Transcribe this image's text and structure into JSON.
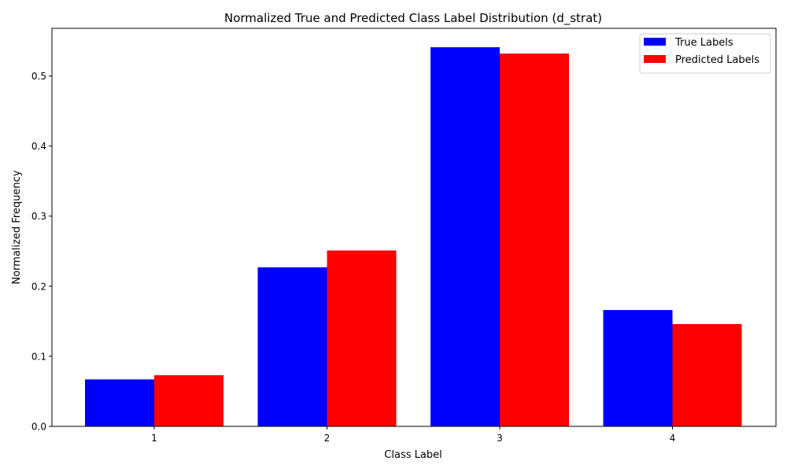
{
  "chart_data": {
    "type": "bar",
    "title": "Normalized True and Predicted Class Label Distribution (d_strat)",
    "xlabel": "Class Label",
    "ylabel": "Normalized Frequency",
    "categories": [
      "1",
      "2",
      "3",
      "4"
    ],
    "series": [
      {
        "name": "True Labels",
        "color": "#0000ff",
        "values": [
          0.067,
          0.227,
          0.541,
          0.166
        ]
      },
      {
        "name": "Predicted Labels",
        "color": "#ff0000",
        "values": [
          0.073,
          0.251,
          0.532,
          0.146
        ]
      }
    ],
    "ylim": [
      0,
      0.568
    ],
    "yticks": [
      "0.0",
      "0.1",
      "0.2",
      "0.3",
      "0.4",
      "0.5"
    ],
    "legend_position": "top-right",
    "grid": false
  }
}
